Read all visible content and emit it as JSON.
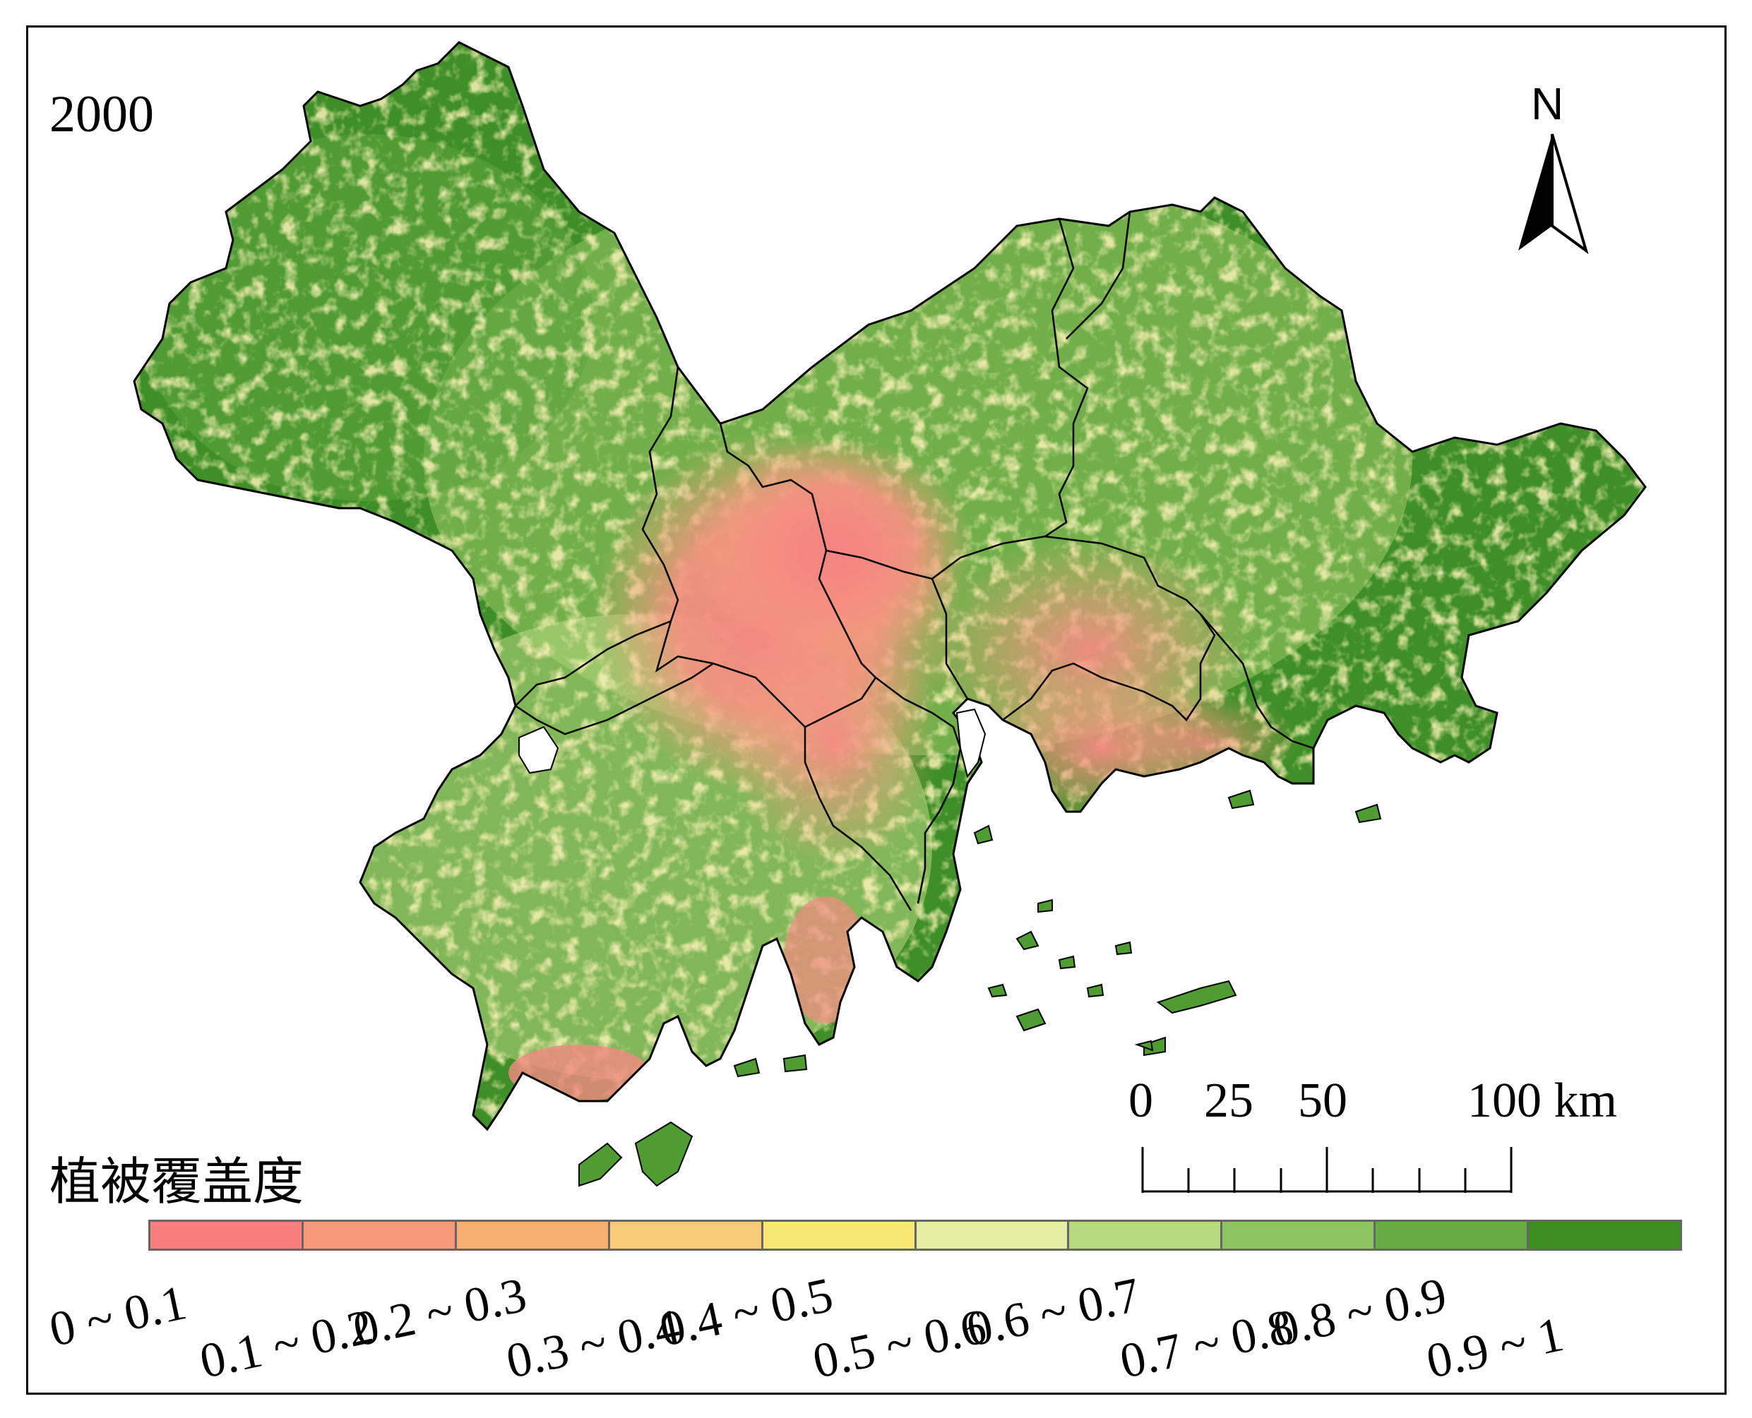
{
  "title_year": "2000",
  "north_arrow": {
    "label": "N"
  },
  "scale_bar": {
    "labels": [
      "0",
      "25",
      "50",
      "100 km"
    ],
    "unit": "km"
  },
  "legend": {
    "title": "植被覆盖度",
    "classes": [
      {
        "label": "0 ~ 0.1",
        "color": "#F97F7F"
      },
      {
        "label": "0.1 ~ 0.2",
        "color": "#F8987A"
      },
      {
        "label": "0.2 ~ 0.3",
        "color": "#F8B070"
      },
      {
        "label": "0.3 ~ 0.4",
        "color": "#F9CB78"
      },
      {
        "label": "0.4 ~ 0.5",
        "color": "#F7E875"
      },
      {
        "label": "0.5 ~ 0.6",
        "color": "#E4EEA5"
      },
      {
        "label": "0.6 ~ 0.7",
        "color": "#B7D980"
      },
      {
        "label": "0.7 ~ 0.8",
        "color": "#8FC462"
      },
      {
        "label": "0.8 ~ 0.9",
        "color": "#67AB45"
      },
      {
        "label": "0.9 ~ 1",
        "color": "#3A8E22"
      }
    ]
  }
}
